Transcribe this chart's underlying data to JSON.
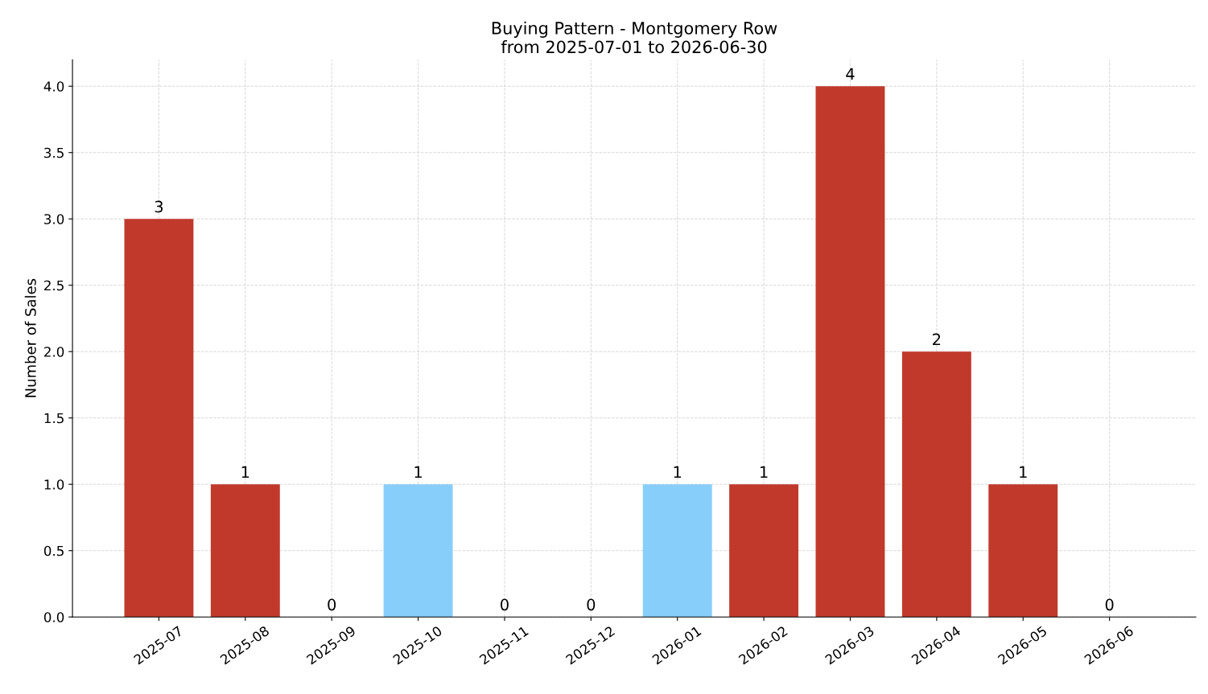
{
  "chart_data": {
    "type": "bar",
    "title": "Buying Pattern - Montgomery Row\nfrom 2025-07-01 to 2026-06-30",
    "ylabel": "Number of Sales",
    "categories": [
      "2025-07",
      "2025-08",
      "2025-09",
      "2025-10",
      "2025-11",
      "2025-12",
      "2026-01",
      "2026-02",
      "2026-03",
      "2026-04",
      "2026-05",
      "2026-06"
    ],
    "values": [
      3,
      1,
      0,
      1,
      0,
      0,
      1,
      1,
      4,
      2,
      1,
      0
    ],
    "colors": [
      "#c0392b",
      "#c0392b",
      "#c0392b",
      "#87cefa",
      "#c0392b",
      "#c0392b",
      "#87cefa",
      "#c0392b",
      "#c0392b",
      "#c0392b",
      "#c0392b",
      "#c0392b"
    ],
    "ylim": [
      0,
      4.2
    ],
    "yticks": [
      {
        "value": 0,
        "label": "0.0"
      },
      {
        "value": 0.5,
        "label": "0.5"
      },
      {
        "value": 1,
        "label": "1.0"
      },
      {
        "value": 1.5,
        "label": "1.5"
      },
      {
        "value": 2,
        "label": "2.0"
      },
      {
        "value": 2.5,
        "label": "2.5"
      },
      {
        "value": 3,
        "label": "3.0"
      },
      {
        "value": 3.5,
        "label": "3.5"
      },
      {
        "value": 4,
        "label": "4.0"
      }
    ],
    "grid": true,
    "data_labels": true,
    "line_style": "dashed"
  }
}
